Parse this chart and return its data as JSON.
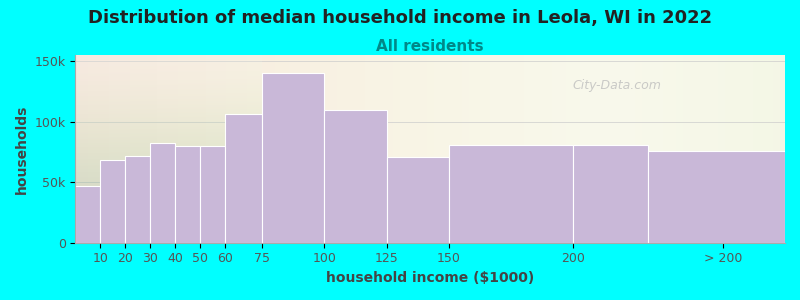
{
  "title": "Distribution of median household income in Leola, WI in 2022",
  "subtitle": "All residents",
  "xlabel": "household income ($1000)",
  "ylabel": "households",
  "bar_color": "#c9b8d8",
  "background_color": "#00ffff",
  "plot_bg_left_color": "#e8f5e2",
  "plot_bg_right_color": "#f8f8f2",
  "values": [
    47000,
    68000,
    72000,
    82000,
    80000,
    80000,
    106000,
    140000,
    110000,
    71000,
    81000,
    81000,
    76000
  ],
  "bar_lefts": [
    0,
    10,
    20,
    30,
    40,
    50,
    60,
    75,
    100,
    125,
    150,
    200,
    230
  ],
  "bar_widths": [
    10,
    10,
    10,
    10,
    10,
    10,
    15,
    25,
    25,
    25,
    50,
    30,
    55
  ],
  "xlim": [
    0,
    285
  ],
  "ylim": [
    0,
    155000
  ],
  "yticks": [
    0,
    50000,
    100000,
    150000
  ],
  "ytick_labels": [
    "0",
    "50k",
    "100k",
    "150k"
  ],
  "xtick_positions": [
    10,
    20,
    30,
    40,
    50,
    60,
    75,
    100,
    125,
    150,
    200,
    260
  ],
  "xtick_labels": [
    "10",
    "20",
    "30",
    "40",
    "50",
    "60",
    "75",
    "100",
    "125",
    "150",
    "200",
    "> 200"
  ],
  "watermark": "City-Data.com",
  "title_fontsize": 13,
  "subtitle_fontsize": 11,
  "axis_label_fontsize": 10,
  "tick_fontsize": 9
}
